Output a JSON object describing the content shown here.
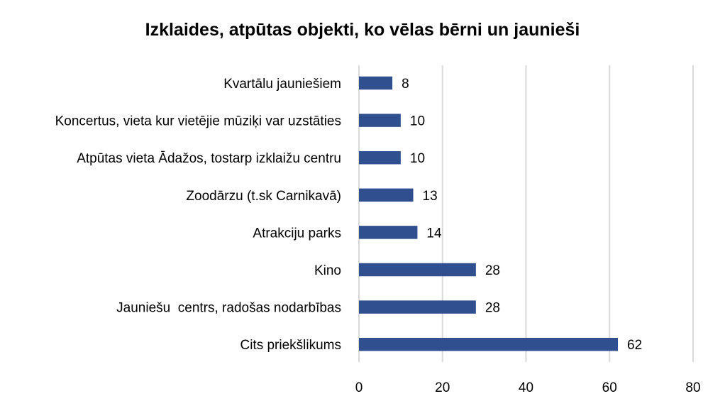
{
  "chart_data": {
    "type": "bar",
    "orientation": "horizontal",
    "title": "Izklaides, atpūtas objekti, ko vēlas bērni un jaunieši",
    "categories": [
      "Kvartālu jauniešiem",
      "Koncertus, vieta kur vietējie mūziķi var uzstāties",
      "Atpūtas vieta Ādažos, tostarp izklaižu centru",
      "Zoodārzu (t.sk Carnikavā)",
      "Atrakciju parks",
      "Kino",
      "Jauniešu  centrs, radošas nodarbības",
      "Cits priekšlikums"
    ],
    "values": [
      8,
      10,
      10,
      13,
      14,
      28,
      28,
      62
    ],
    "data_labels": [
      "8",
      "10",
      "10",
      "13",
      "14",
      "28",
      "28",
      "62"
    ],
    "xlim": [
      0,
      80
    ],
    "xticks": [
      "0",
      "20",
      "40",
      "60",
      "80"
    ],
    "grid": "vertical",
    "bar_color": "#2f4f8f",
    "grid_color": "#d9d9d9"
  }
}
